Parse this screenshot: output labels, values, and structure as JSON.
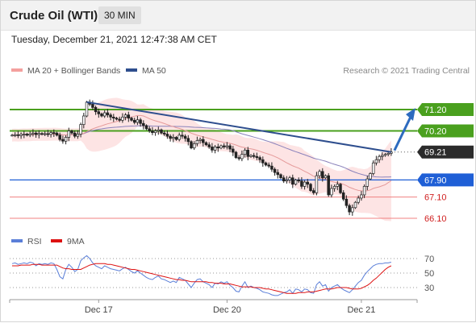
{
  "header": {
    "title": "Crude Oil (WTI)",
    "timeframe": "30 MIN"
  },
  "timestamp": "Tuesday, December 21, 2021 12:47:38 AM CET",
  "legend": {
    "ma20_bb": "MA 20 + Bollinger Bands",
    "ma50": "MA 50",
    "credit": "Research © 2021 Trading Central"
  },
  "rsi_legend": {
    "rsi": "RSI",
    "ma9": "9MA"
  },
  "colors": {
    "green_level": "#4aa01e",
    "blue_level": "#1f5fd6",
    "red_level": "#f08080",
    "trend": "#2e4e8e",
    "price_box": "#2b2b2b",
    "bb_fill": "#fde4e4",
    "ma50": "#8a82bb",
    "ma20": "#e59a9a",
    "rsi_line": "#5b7fd8",
    "rsi_ma": "#dd1111"
  },
  "chart_data": [
    {
      "type": "line",
      "subtype": "candlestick",
      "series": [
        {
          "name": "MA 20 + Bollinger Bands"
        },
        {
          "name": "MA 50"
        }
      ],
      "x_tick_labels": [
        "Dec 17",
        "Dec 20",
        "Dec 21"
      ],
      "x_tick_index": [
        29,
        72,
        117
      ],
      "ylim": [
        65.8,
        72.6
      ],
      "levels": [
        {
          "value": 71.2,
          "label": "71.20",
          "style": "resistance"
        },
        {
          "value": 70.2,
          "label": "70.20",
          "style": "resistance"
        },
        {
          "value": 69.21,
          "label": "69.21",
          "style": "last"
        },
        {
          "value": 67.9,
          "label": "67.90",
          "style": "pivot"
        },
        {
          "value": 67.1,
          "label": "67.10",
          "style": "support"
        },
        {
          "value": 66.1,
          "label": "66.10",
          "style": "support"
        }
      ],
      "close": [
        70.0,
        70.02,
        69.98,
        70.04,
        70.05,
        70.0,
        70.06,
        70.1,
        70.03,
        70.08,
        70.05,
        70.07,
        70.04,
        70.12,
        70.1,
        70.0,
        69.8,
        69.72,
        69.9,
        70.2,
        70.1,
        69.95,
        70.05,
        70.5,
        70.9,
        71.55,
        71.45,
        71.3,
        71.1,
        71.0,
        70.9,
        71.05,
        70.95,
        70.85,
        70.8,
        70.75,
        70.7,
        70.85,
        70.95,
        70.8,
        70.7,
        70.6,
        70.72,
        70.55,
        70.45,
        70.3,
        70.2,
        70.12,
        70.2,
        70.25,
        70.1,
        70.05,
        69.95,
        69.85,
        69.9,
        69.8,
        70.0,
        69.95,
        69.85,
        69.7,
        69.4,
        69.6,
        69.75,
        69.8,
        69.65,
        69.55,
        69.45,
        69.3,
        69.45,
        69.4,
        69.5,
        69.45,
        69.5,
        69.35,
        69.2,
        68.95,
        68.9,
        69.1,
        69.3,
        69.0,
        69.05,
        69.0,
        68.95,
        68.85,
        68.7,
        68.6,
        68.55,
        68.4,
        68.25,
        68.15,
        68.0,
        67.85,
        67.9,
        68.0,
        67.7,
        67.9,
        67.85,
        67.6,
        67.8,
        67.7,
        67.4,
        67.3,
        68.1,
        68.3,
        68.0,
        68.1,
        67.2,
        67.5,
        67.6,
        67.7,
        67.3,
        67.0,
        66.7,
        66.4,
        66.6,
        66.85,
        67.05,
        67.2,
        67.6,
        67.95,
        68.2,
        68.7,
        68.85,
        69.0,
        69.05,
        69.1,
        69.15,
        69.21
      ],
      "rsi": [
        63,
        64,
        62,
        63,
        64,
        63,
        65,
        64,
        60,
        63,
        62,
        63,
        62,
        64,
        63,
        55,
        45,
        42,
        55,
        62,
        58,
        52,
        55,
        67,
        71,
        74,
        70,
        64,
        60,
        58,
        56,
        60,
        58,
        56,
        55,
        54,
        53,
        56,
        58,
        55,
        52,
        50,
        53,
        50,
        47,
        44,
        42,
        41,
        44,
        46,
        42,
        41,
        39,
        37,
        39,
        37,
        44,
        42,
        40,
        35,
        30,
        36,
        41,
        42,
        38,
        36,
        34,
        30,
        36,
        35,
        38,
        36,
        38,
        33,
        30,
        25,
        24,
        32,
        38,
        30,
        32,
        30,
        29,
        27,
        24,
        23,
        22,
        20,
        19,
        19,
        21,
        23,
        24,
        27,
        22,
        28,
        27,
        24,
        28,
        27,
        23,
        22,
        34,
        38,
        32,
        34,
        25,
        30,
        32,
        34,
        30,
        27,
        25,
        23,
        27,
        32,
        37,
        40,
        47,
        52,
        56,
        60,
        62,
        63,
        63,
        64,
        64,
        65
      ],
      "rsi_ma": [
        60,
        60,
        60,
        61,
        61,
        61,
        61,
        62,
        62,
        62,
        61,
        61,
        61,
        61,
        61,
        61,
        59,
        57,
        56,
        56,
        55,
        55,
        55,
        55,
        57,
        59,
        61,
        62,
        63,
        63,
        63,
        63,
        62,
        62,
        61,
        60,
        59,
        58,
        57,
        56,
        55,
        55,
        54,
        53,
        52,
        51,
        50,
        49,
        48,
        47,
        46,
        45,
        44,
        43,
        42,
        41,
        41,
        40,
        40,
        39,
        38,
        38,
        38,
        38,
        38,
        38,
        37,
        37,
        36,
        36,
        36,
        35,
        35,
        35,
        34,
        33,
        32,
        31,
        31,
        31,
        31,
        30,
        30,
        30,
        29,
        28,
        28,
        27,
        26,
        25,
        24,
        23,
        22,
        22,
        22,
        22,
        23,
        23,
        23,
        24,
        24,
        24,
        25,
        26,
        27,
        28,
        28,
        28,
        29,
        30,
        30,
        30,
        30,
        29,
        28,
        28,
        28,
        29,
        31,
        33,
        36,
        40,
        43,
        47,
        51,
        55,
        58,
        60
      ]
    }
  ]
}
